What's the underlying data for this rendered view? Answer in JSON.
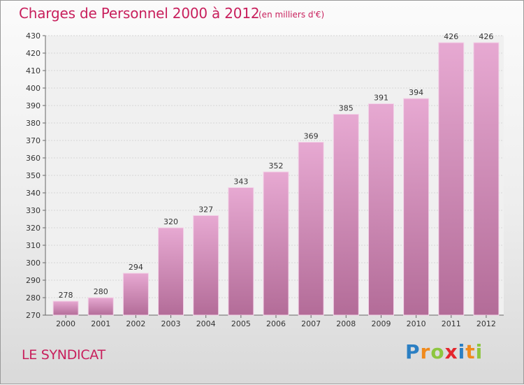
{
  "header": {
    "title": "Charges de Personnel 2000 à 2012",
    "unit": "(en milliers d'€)"
  },
  "footer": {
    "place": "LE SYNDICAT",
    "logo_letters": [
      {
        "ch": "P",
        "color": "#2b7fc3"
      },
      {
        "ch": "r",
        "color": "#f08a1c"
      },
      {
        "ch": "o",
        "color": "#8dc63f"
      },
      {
        "ch": "x",
        "color": "#e4262d"
      },
      {
        "ch": "i",
        "color": "#2b7fc3"
      },
      {
        "ch": "t",
        "color": "#f08a1c"
      },
      {
        "ch": "i",
        "color": "#8dc63f"
      }
    ]
  },
  "colors": {
    "title": "#c81f5c",
    "bar_top": "#e7a9d2",
    "bar_bottom": "#b36c98"
  },
  "chart_data": {
    "type": "bar",
    "title": "Charges de Personnel 2000 à 2012",
    "subtitle": "(en milliers d'€)",
    "categories": [
      "2000",
      "2001",
      "2002",
      "2003",
      "2004",
      "2005",
      "2006",
      "2007",
      "2008",
      "2009",
      "2010",
      "2011",
      "2012"
    ],
    "values": [
      278,
      280,
      294,
      320,
      327,
      343,
      352,
      369,
      385,
      391,
      394,
      426,
      426
    ],
    "ylim": [
      270,
      430
    ],
    "ytick_step": 10,
    "grid": true,
    "xlabel": "",
    "ylabel": ""
  }
}
